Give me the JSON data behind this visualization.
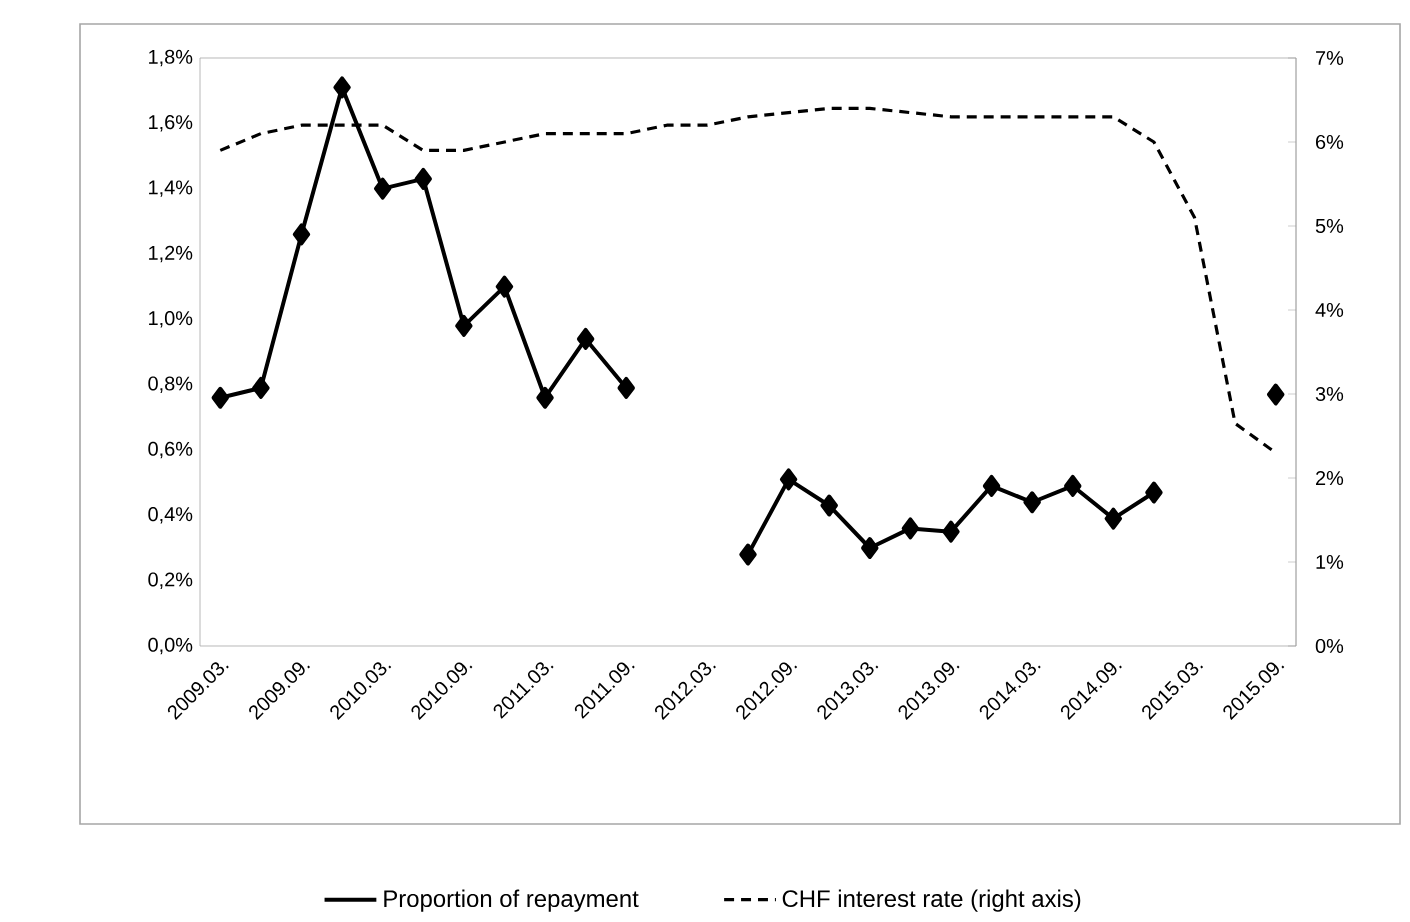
{
  "chart_data": {
    "type": "line",
    "categories": [
      "2009.03.",
      null,
      "2009.09.",
      null,
      "2010.03.",
      null,
      "2010.09.",
      null,
      "2011.03.",
      null,
      "2011.09.",
      null,
      "2012.03.",
      null,
      "2012.09.",
      null,
      "2013.03.",
      null,
      "2013.09.",
      null,
      "2014.03.",
      null,
      "2014.09.",
      null,
      "2015.03.",
      null,
      "2015.09."
    ],
    "series": [
      {
        "name": "Proportion of repayment",
        "color": "#000000",
        "marker": "diamond",
        "line_style": "solid",
        "values": [
          0.76,
          0.79,
          1.26,
          1.71,
          1.4,
          1.43,
          0.98,
          1.1,
          0.76,
          0.94,
          0.79,
          null,
          null,
          0.28,
          0.51,
          0.43,
          0.3,
          0.36,
          0.35,
          0.49,
          0.44,
          0.49,
          0.39,
          0.47,
          null,
          null,
          0.77
        ]
      },
      {
        "name": "CHF interest rate (right axis)",
        "color": "#000000",
        "marker": "none",
        "line_style": "dashed",
        "axis": "y2",
        "values": [
          5.9,
          6.1,
          6.2,
          6.2,
          6.2,
          5.9,
          5.9,
          6.0,
          6.1,
          6.1,
          6.1,
          6.2,
          6.2,
          6.3,
          6.35,
          6.4,
          6.4,
          6.35,
          6.3,
          6.3,
          6.3,
          6.3,
          6.3,
          6.0,
          5.1,
          2.65,
          2.3
        ]
      }
    ],
    "ylim": [
      0,
      1.8
    ],
    "yticks": [
      {
        "value": 0,
        "label": "0,0%"
      },
      {
        "value": 0.2,
        "label": "0,2%"
      },
      {
        "value": 0.4,
        "label": "0,4%"
      },
      {
        "value": 0.6,
        "label": "0,6%"
      },
      {
        "value": 0.8,
        "label": "0,8%"
      },
      {
        "value": 1.0,
        "label": "1,0%"
      },
      {
        "value": 1.2,
        "label": "1,2%"
      },
      {
        "value": 1.4,
        "label": "1,4%"
      },
      {
        "value": 1.6,
        "label": "1,6%"
      },
      {
        "value": 1.8,
        "label": "1,8%"
      }
    ],
    "y2lim": [
      0,
      7
    ],
    "y2ticks": [
      {
        "value": 0,
        "label": "0%"
      },
      {
        "value": 1,
        "label": "1%"
      },
      {
        "value": 2,
        "label": "2%"
      },
      {
        "value": 3,
        "label": "3%"
      },
      {
        "value": 4,
        "label": "4%"
      },
      {
        "value": 5,
        "label": "5%"
      },
      {
        "value": 6,
        "label": "6%"
      },
      {
        "value": 7,
        "label": "7%"
      }
    ],
    "grid": false,
    "legend": "bottom"
  }
}
